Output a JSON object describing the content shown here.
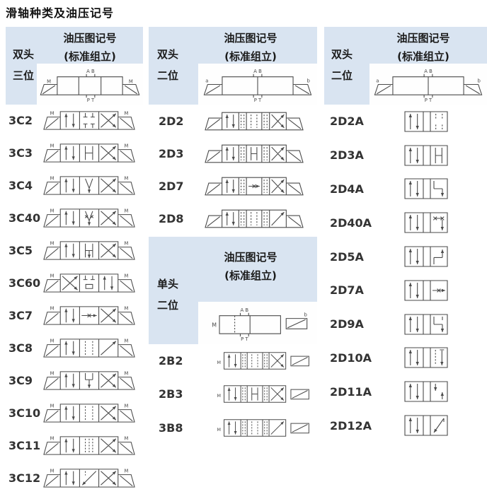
{
  "title": "滑轴种类及油压记号",
  "colors": {
    "header_bg": "#d9e4f1",
    "line": "#4a4a4a",
    "text": "#333333"
  },
  "columns": {
    "c1": {
      "head_line1": "双头",
      "head_line2": "三位",
      "sym_title": "油压图记号",
      "sym_sub": "(标准组立)",
      "master": {
        "kind": "m3",
        "top": "A B",
        "bottom": "P T",
        "left": "M",
        "right": "M"
      },
      "rows": [
        {
          "code": "3C2",
          "sym": {
            "kind": "3C",
            "center": "T4"
          }
        },
        {
          "code": "3C3",
          "sym": {
            "kind": "3C",
            "center": "H"
          }
        },
        {
          "code": "3C4",
          "sym": {
            "kind": "3C",
            "center": "Y"
          }
        },
        {
          "code": "3C40",
          "sym": {
            "kind": "3C",
            "center": "Yx"
          }
        },
        {
          "code": "3C5",
          "sym": {
            "kind": "3C",
            "center": "h"
          }
        },
        {
          "code": "3C60",
          "sym": {
            "kind": "3C",
            "envs": [
              "X",
              "U60",
              "P"
            ]
          }
        },
        {
          "code": "3C7",
          "sym": {
            "kind": "3C",
            "center": "arrM"
          }
        },
        {
          "code": "3C8",
          "sym": {
            "kind": "3C",
            "center": "D",
            "right": "diag"
          }
        },
        {
          "code": "3C9",
          "sym": {
            "kind": "3C",
            "center": "bridge"
          }
        },
        {
          "code": "3C10",
          "sym": {
            "kind": "3C",
            "center": "D"
          }
        },
        {
          "code": "3C11",
          "sym": {
            "kind": "3C",
            "center": "D2"
          }
        },
        {
          "code": "3C12",
          "sym": {
            "kind": "3C",
            "center": "N"
          }
        }
      ]
    },
    "c2": {
      "head_double_line1": "双头",
      "head_double_line2": "二位",
      "sym_title": "油压图记号",
      "sym_sub": "(标准组立)",
      "master_double": {
        "kind": "m2",
        "top": "A B",
        "bottom": "P T",
        "left": "a",
        "right": "b"
      },
      "rows_double": [
        {
          "code": "2D2",
          "sym": {
            "kind": "2D",
            "center": "D",
            "right": "X"
          }
        },
        {
          "code": "2D3",
          "sym": {
            "kind": "2D",
            "center": "H",
            "right": "X"
          }
        },
        {
          "code": "2D7",
          "sym": {
            "kind": "2D",
            "center": "arrM",
            "right": "X"
          }
        },
        {
          "code": "2D8",
          "sym": {
            "kind": "2D",
            "center": "D",
            "right": "diag"
          }
        }
      ],
      "head_single_line1": "单头",
      "head_single_line2": "二位",
      "sym_title2": "油压图记号",
      "sym_sub2": "(标准组立)",
      "master_single": {
        "kind": "m1",
        "top": "A B",
        "bottom": "P T",
        "left": "M",
        "right": "b"
      },
      "rows_single": [
        {
          "code": "2B2",
          "sym": {
            "kind": "2B",
            "center": "D",
            "right": "X"
          }
        },
        {
          "code": "2B3",
          "sym": {
            "kind": "2B",
            "center": "H",
            "right": "X"
          }
        },
        {
          "code": "3B8",
          "sym": {
            "kind": "2B",
            "center": "D",
            "right": "diag"
          }
        }
      ]
    },
    "c3": {
      "head_line1": "双头",
      "head_line2": "二位",
      "sym_title": "油压图记号",
      "sym_sub": "(标准组立)",
      "master": {
        "kind": "m2",
        "top": "A B",
        "bottom": "P T",
        "left": "a",
        "right": "b"
      },
      "rows": [
        {
          "code": "2D2A",
          "sym": {
            "kind": "2DA",
            "cell": "stD"
          }
        },
        {
          "code": "2D3A",
          "sym": {
            "kind": "2DA",
            "cell": "H"
          }
        },
        {
          "code": "2D4A",
          "sym": {
            "kind": "2DA",
            "cell": "Z"
          }
        },
        {
          "code": "2D40A",
          "sym": {
            "kind": "2DA",
            "cell": "xx"
          }
        },
        {
          "code": "2D5A",
          "sym": {
            "kind": "2DA",
            "cell": "b5"
          }
        },
        {
          "code": "2D7A",
          "sym": {
            "kind": "2DA",
            "cell": "arrM"
          }
        },
        {
          "code": "2D9A",
          "sym": {
            "kind": "2DA",
            "cell": "P9"
          }
        },
        {
          "code": "2D10A",
          "sym": {
            "kind": "2DA",
            "cell": "Ds"
          }
        },
        {
          "code": "2D11A",
          "sym": {
            "kind": "2DA",
            "cell": "st"
          }
        },
        {
          "code": "2D12A",
          "sym": {
            "kind": "2DA",
            "cell": "NA"
          }
        }
      ]
    }
  }
}
